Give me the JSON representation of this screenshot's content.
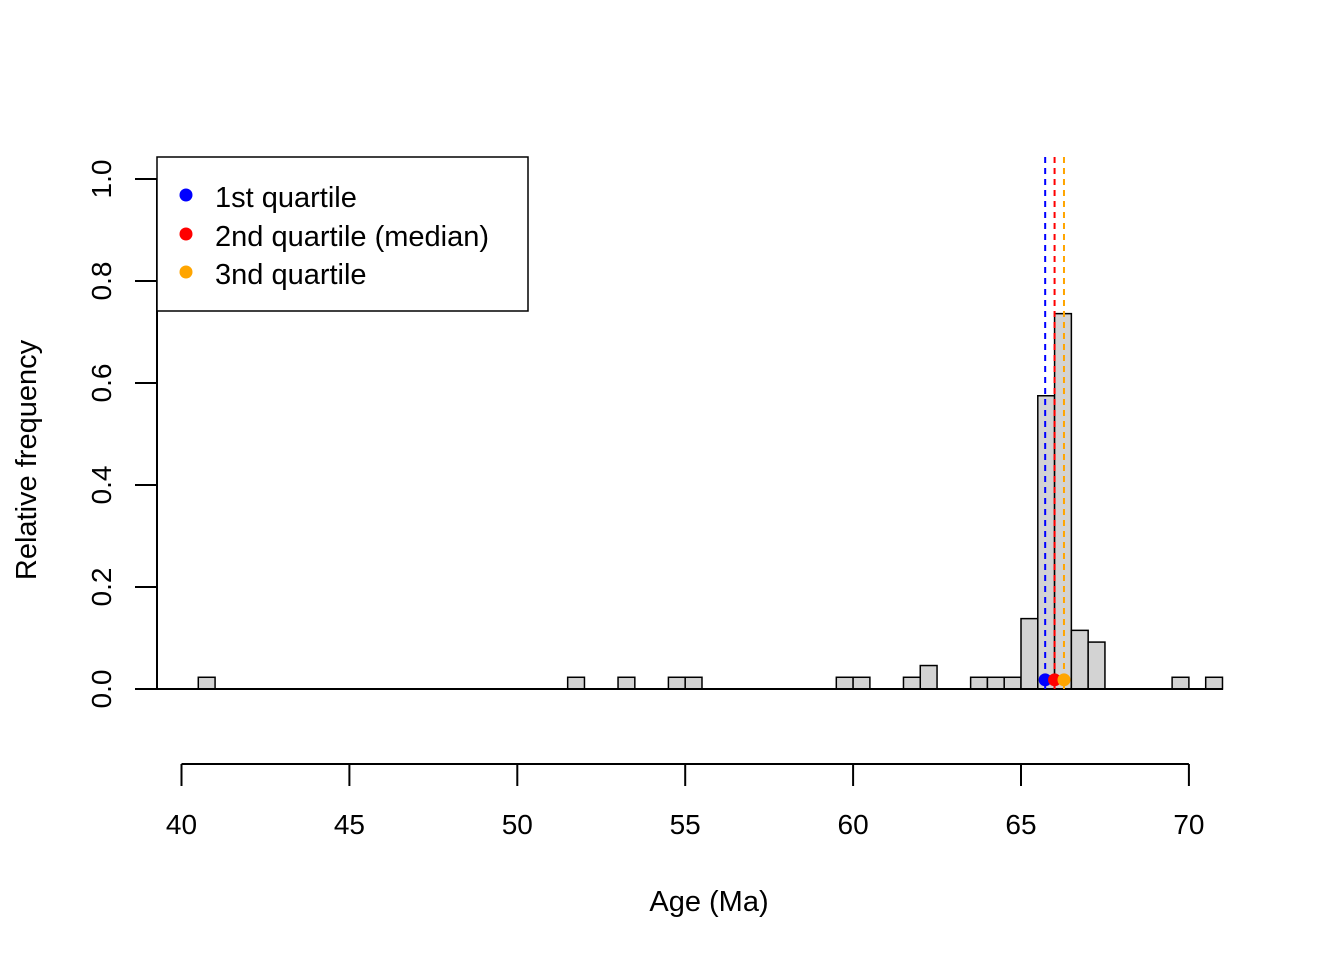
{
  "chart_data": {
    "type": "bar",
    "subtype": "histogram",
    "xlabel": "Age (Ma)",
    "ylabel": "Relative frequency",
    "xlim": [
      40,
      70
    ],
    "ylim": [
      0,
      1.0
    ],
    "x_ticks": [
      "40",
      "45",
      "50",
      "55",
      "60",
      "65",
      "70"
    ],
    "y_ticks": [
      "0.0",
      "0.2",
      "0.4",
      "0.6",
      "0.8",
      "1.0"
    ],
    "bin_width": 0.5,
    "bins": [
      {
        "start": 40.5,
        "end": 41.0,
        "value": 0.023
      },
      {
        "start": 51.5,
        "end": 52.0,
        "value": 0.023
      },
      {
        "start": 53.0,
        "end": 53.5,
        "value": 0.023
      },
      {
        "start": 54.5,
        "end": 55.0,
        "value": 0.023
      },
      {
        "start": 55.0,
        "end": 55.5,
        "value": 0.023
      },
      {
        "start": 59.5,
        "end": 60.0,
        "value": 0.023
      },
      {
        "start": 60.0,
        "end": 60.5,
        "value": 0.023
      },
      {
        "start": 61.5,
        "end": 62.0,
        "value": 0.023
      },
      {
        "start": 62.0,
        "end": 62.5,
        "value": 0.046
      },
      {
        "start": 63.5,
        "end": 64.0,
        "value": 0.023
      },
      {
        "start": 64.0,
        "end": 64.5,
        "value": 0.023
      },
      {
        "start": 64.5,
        "end": 65.0,
        "value": 0.023
      },
      {
        "start": 65.0,
        "end": 65.5,
        "value": 0.138
      },
      {
        "start": 65.5,
        "end": 66.0,
        "value": 0.575
      },
      {
        "start": 66.0,
        "end": 66.5,
        "value": 0.736
      },
      {
        "start": 66.5,
        "end": 67.0,
        "value": 0.115
      },
      {
        "start": 67.0,
        "end": 67.5,
        "value": 0.092
      },
      {
        "start": 69.5,
        "end": 70.0,
        "value": 0.023
      },
      {
        "start": 70.5,
        "end": 71.0,
        "value": 0.023
      }
    ],
    "quartiles": [
      {
        "name": "1st quartile",
        "value": 65.72,
        "color": "#0000ff"
      },
      {
        "name": "2nd quartile (median)",
        "value": 66.0,
        "color": "#ff0000"
      },
      {
        "name": "3nd quartile",
        "value": 66.28,
        "color": "#ffa500"
      }
    ],
    "bar_fill": "#d3d3d3",
    "legend_position": "top-left",
    "grid": false
  }
}
